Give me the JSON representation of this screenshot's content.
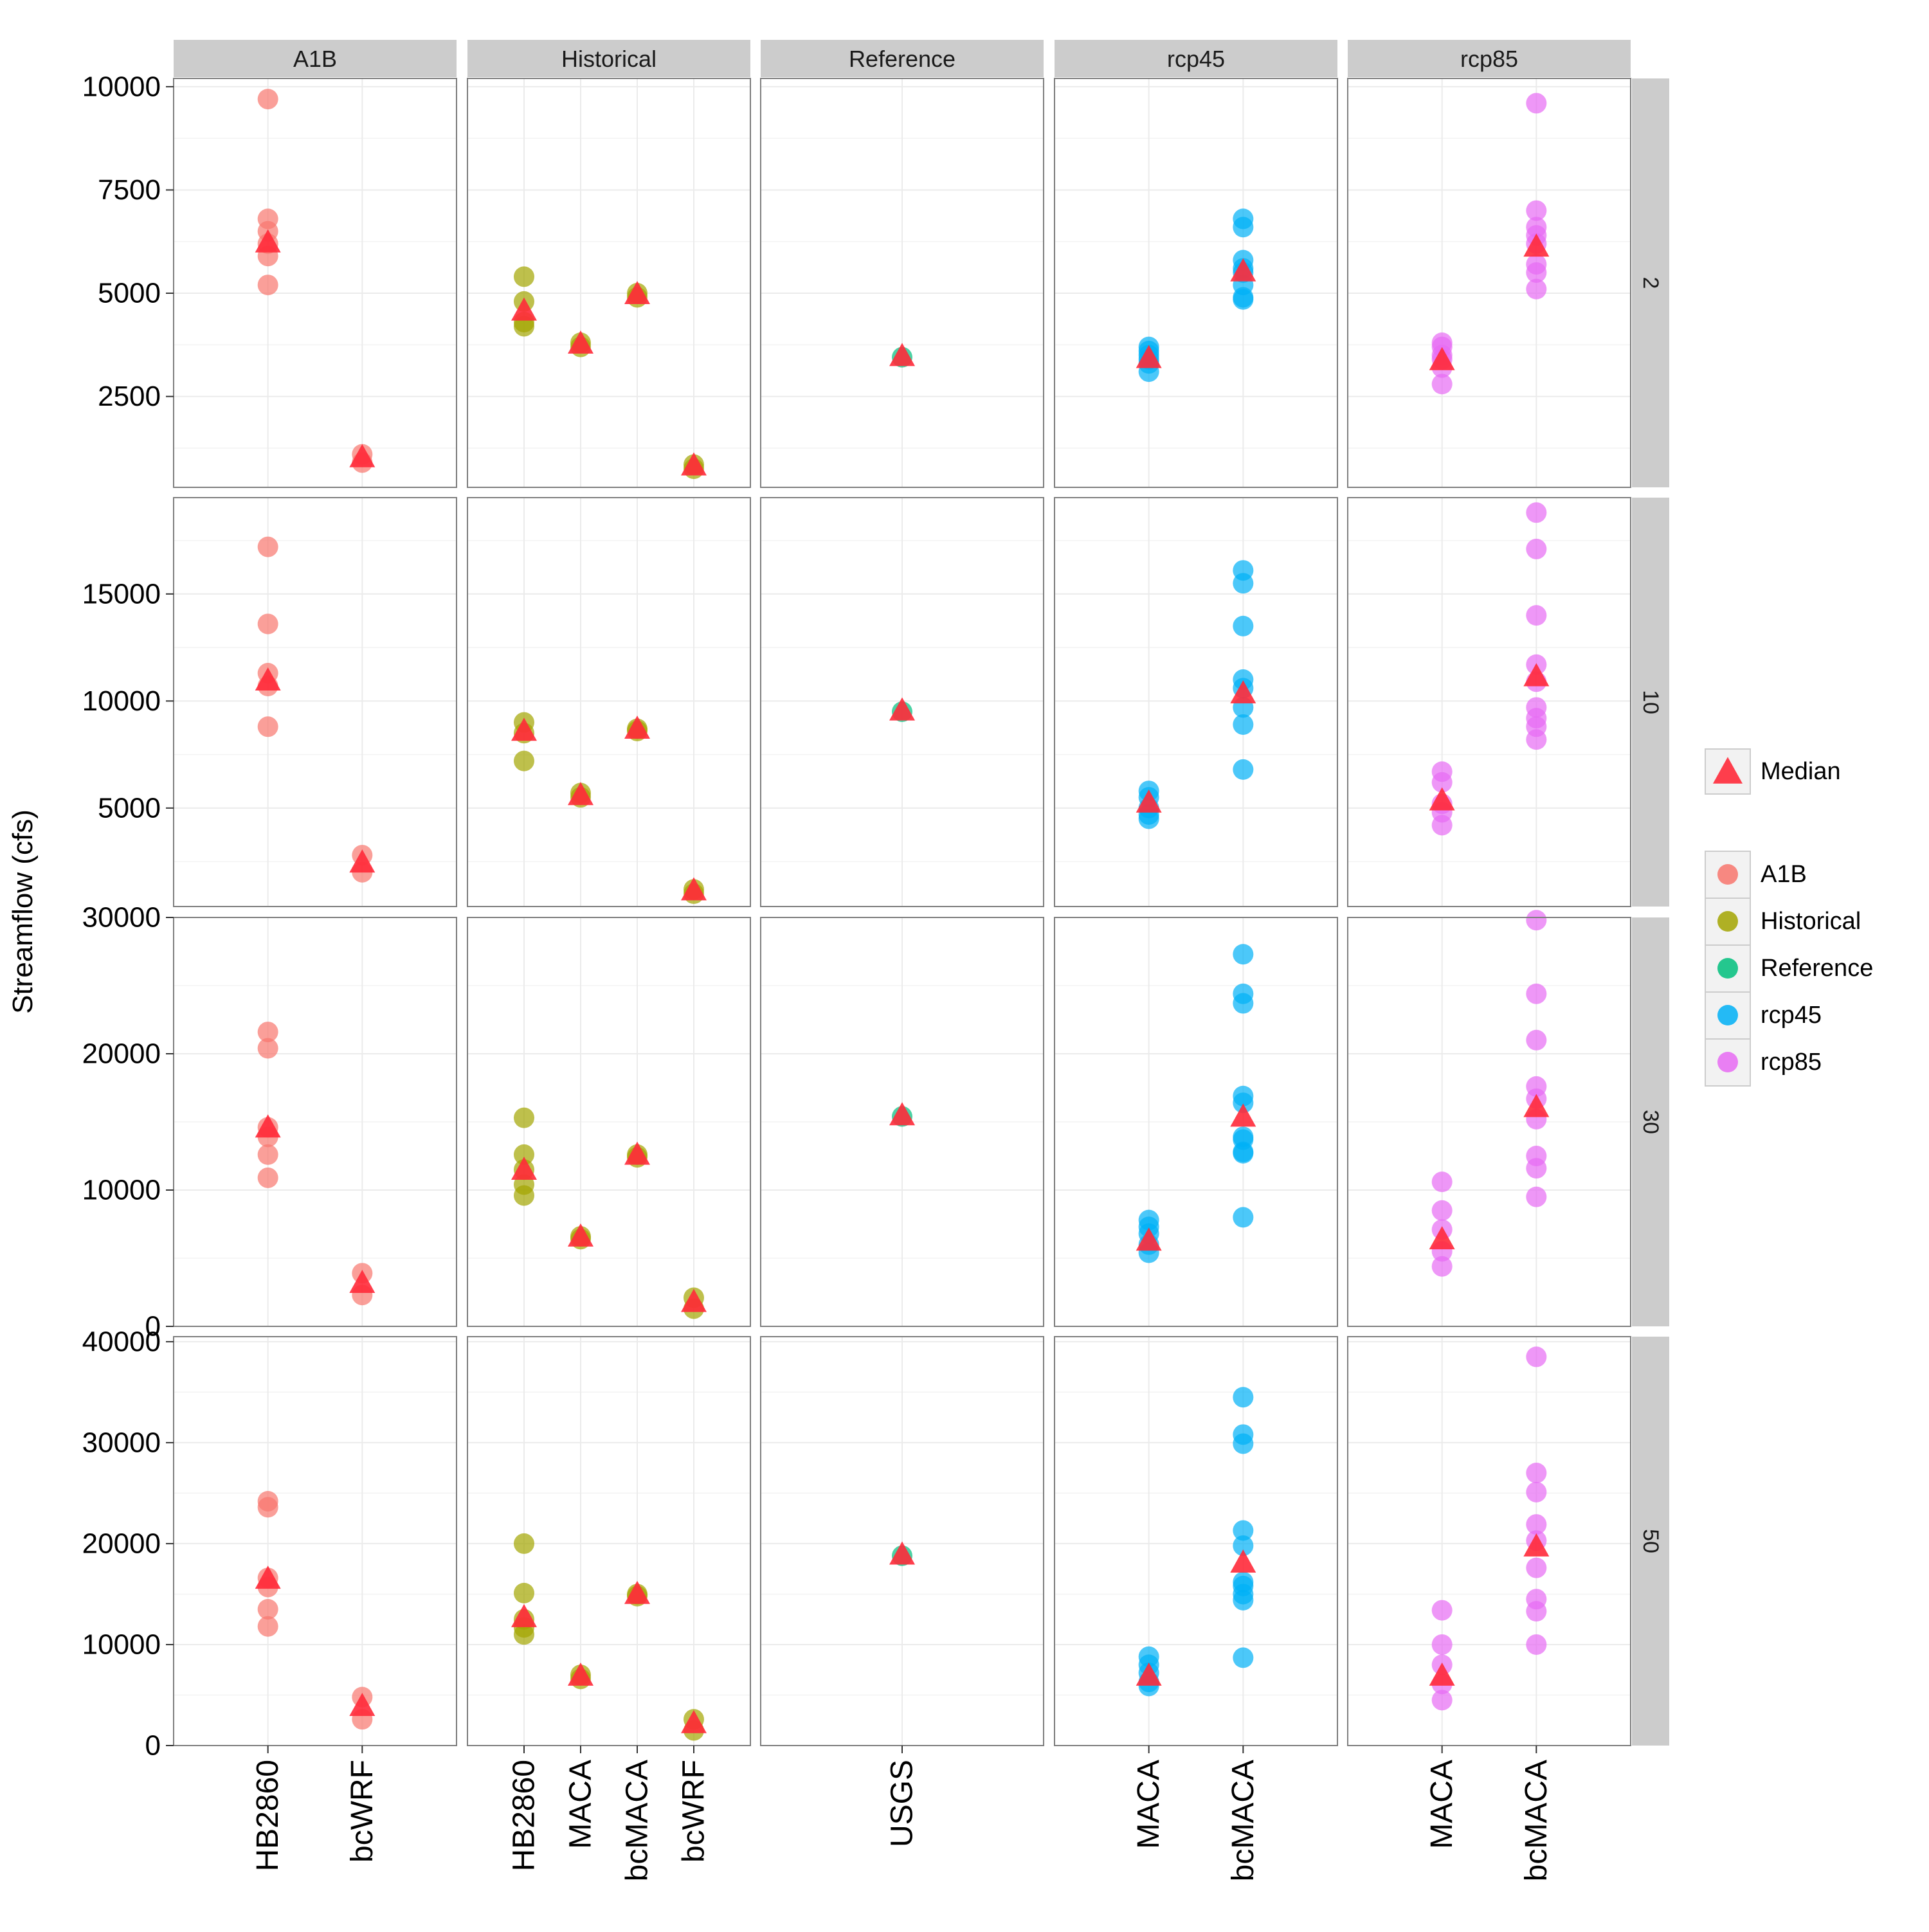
{
  "chart_data": {
    "type": "scatter",
    "ylabel": "Streamflow (cfs)",
    "xlabel": "",
    "column_facets": [
      "A1B",
      "Historical",
      "Reference",
      "rcp45",
      "rcp85"
    ],
    "row_facets": [
      "2",
      "10",
      "30",
      "50"
    ],
    "x_categories": {
      "A1B": [
        "HB2860",
        "bcWRF"
      ],
      "Historical": [
        "HB2860",
        "MACA",
        "bcMACA",
        "bcWRF"
      ],
      "Reference": [
        "USGS"
      ],
      "rcp45": [
        "MACA",
        "bcMACA"
      ],
      "rcp85": [
        "MACA",
        "bcMACA"
      ]
    },
    "rows": [
      {
        "facet": "2",
        "ylim": [
          300,
          10200
        ],
        "yticks": [
          2500,
          5000,
          7500,
          10000
        ],
        "y_tick_labels": [
          "2500",
          "5000",
          "7500",
          "10000"
        ],
        "points": {
          "A1B": [
            [
              9700,
              6800,
              6500,
              6200,
              5900,
              5200
            ],
            [
              1100,
              900
            ]
          ],
          "Historical": [
            [
              5400,
              4800,
              4300,
              4200
            ],
            [
              3800,
              3700
            ],
            [
              5000,
              4900
            ],
            [
              850,
              750
            ]
          ],
          "Reference": [
            [
              3450
            ]
          ],
          "rcp45": [
            [
              3700,
              3600,
              3500,
              3400,
              3300,
              3100
            ],
            [
              6800,
              6600,
              5800,
              5600,
              5500,
              5200,
              4900,
              4850
            ]
          ],
          "rcp85": [
            [
              3800,
              3700,
              3500,
              3400,
              3200,
              2800
            ],
            [
              9600,
              7000,
              6600,
              6400,
              6200,
              5700,
              5500,
              5100
            ]
          ]
        },
        "medians": {
          "A1B": [
            6200,
            1000
          ],
          "Historical": [
            4550,
            3750,
            4950,
            800
          ],
          "Reference": [
            3450
          ],
          "rcp45": [
            3400,
            5500
          ],
          "rcp85": [
            3350,
            6100
          ]
        }
      },
      {
        "facet": "10",
        "ylim": [
          400,
          19500
        ],
        "yticks": [
          5000,
          10000,
          15000
        ],
        "y_tick_labels": [
          "5000",
          "10000",
          "15000"
        ],
        "points": {
          "A1B": [
            [
              17200,
              13600,
              11300,
              10700,
              8800
            ],
            [
              2800,
              2000
            ]
          ],
          "Historical": [
            [
              9000,
              8500,
              7200
            ],
            [
              5700,
              5500
            ],
            [
              8700,
              8600
            ],
            [
              1200,
              1000
            ]
          ],
          "Reference": [
            [
              9500
            ]
          ],
          "rcp45": [
            [
              5800,
              5500,
              5000,
              4700,
              4500
            ],
            [
              16100,
              15500,
              13500,
              11000,
              10600,
              9700,
              8900,
              6800
            ]
          ],
          "rcp85": [
            [
              6700,
              6200,
              5200,
              4800,
              4200
            ],
            [
              18800,
              17100,
              14000,
              11700,
              10900,
              9700,
              9200,
              8800,
              8200
            ]
          ]
        },
        "medians": {
          "A1B": [
            10900,
            2400
          ],
          "Historical": [
            8550,
            5550,
            8650,
            1100
          ],
          "Reference": [
            9500
          ],
          "rcp45": [
            5200,
            10300
          ],
          "rcp85": [
            5300,
            11100
          ]
        }
      },
      {
        "facet": "30",
        "ylim": [
          0,
          30000
        ],
        "yticks": [
          0,
          10000,
          20000,
          30000
        ],
        "y_tick_labels": [
          "0",
          "10000",
          "20000",
          "30000"
        ],
        "points": {
          "A1B": [
            [
              21600,
              20400,
              14600,
              13900,
              12600,
              10900
            ],
            [
              3900,
              2300
            ]
          ],
          "Historical": [
            [
              15300,
              12600,
              11500,
              10400,
              9600
            ],
            [
              6600,
              6400
            ],
            [
              12600,
              12400
            ],
            [
              2100,
              1300
            ]
          ],
          "Reference": [
            [
              15400
            ]
          ],
          "rcp45": [
            [
              7800,
              7300,
              6800,
              6000,
              5400
            ],
            [
              27300,
              24400,
              23700,
              16900,
              16400,
              13900,
              13700,
              12800,
              12700,
              8000
            ]
          ],
          "rcp85": [
            [
              10600,
              8500,
              7100,
              5500,
              4400
            ],
            [
              29800,
              24400,
              21000,
              17600,
              16700,
              15200,
              12500,
              11600,
              9500
            ]
          ]
        },
        "medians": {
          "A1B": [
            14500,
            3100
          ],
          "Historical": [
            11400,
            6500,
            12500,
            1700
          ],
          "Reference": [
            15400
          ],
          "rcp45": [
            6200,
            15300
          ],
          "rcp85": [
            6300,
            16000
          ]
        }
      },
      {
        "facet": "50",
        "ylim": [
          0,
          40500
        ],
        "yticks": [
          0,
          10000,
          20000,
          30000,
          40000
        ],
        "y_tick_labels": [
          "0",
          "10000",
          "20000",
          "30000",
          "40000"
        ],
        "points": {
          "A1B": [
            [
              24200,
              23600,
              16600,
              15700,
              13500,
              11800
            ],
            [
              4800,
              2600
            ]
          ],
          "Historical": [
            [
              20000,
              15100,
              12500,
              11700,
              11000
            ],
            [
              7000,
              6600
            ],
            [
              15000,
              14800
            ],
            [
              2600,
              1500
            ]
          ],
          "Reference": [
            [
              18800
            ]
          ],
          "rcp45": [
            [
              8800,
              8000,
              7200,
              6300,
              5900
            ],
            [
              34500,
              30800,
              29900,
              21300,
              19800,
              16200,
              15800,
              15000,
              14400,
              8700
            ]
          ],
          "rcp85": [
            [
              13400,
              10000,
              8000,
              6100,
              4500
            ],
            [
              38500,
              27000,
              25100,
              21900,
              20300,
              17600,
              14500,
              13300,
              10000
            ]
          ]
        },
        "medians": {
          "A1B": [
            16400,
            3800
          ],
          "Historical": [
            12600,
            6800,
            14900,
            2100
          ],
          "Reference": [
            18800
          ],
          "rcp45": [
            6800,
            18000
          ],
          "rcp85": [
            6800,
            19600
          ]
        }
      }
    ],
    "legend": {
      "placement": "right",
      "median_label": "Median",
      "series_labels": [
        "A1B",
        "Historical",
        "Reference",
        "rcp45",
        "rcp85"
      ]
    },
    "colors": {
      "A1B": "#F8766D",
      "Historical": "#A3A500",
      "Reference": "#00BF7D",
      "rcp45": "#00B0F6",
      "rcp85": "#E76BF3",
      "median": "#FF2A3A",
      "strip_background": "#CCCCCC",
      "grid": "#EBEBEB"
    },
    "grid": true
  }
}
